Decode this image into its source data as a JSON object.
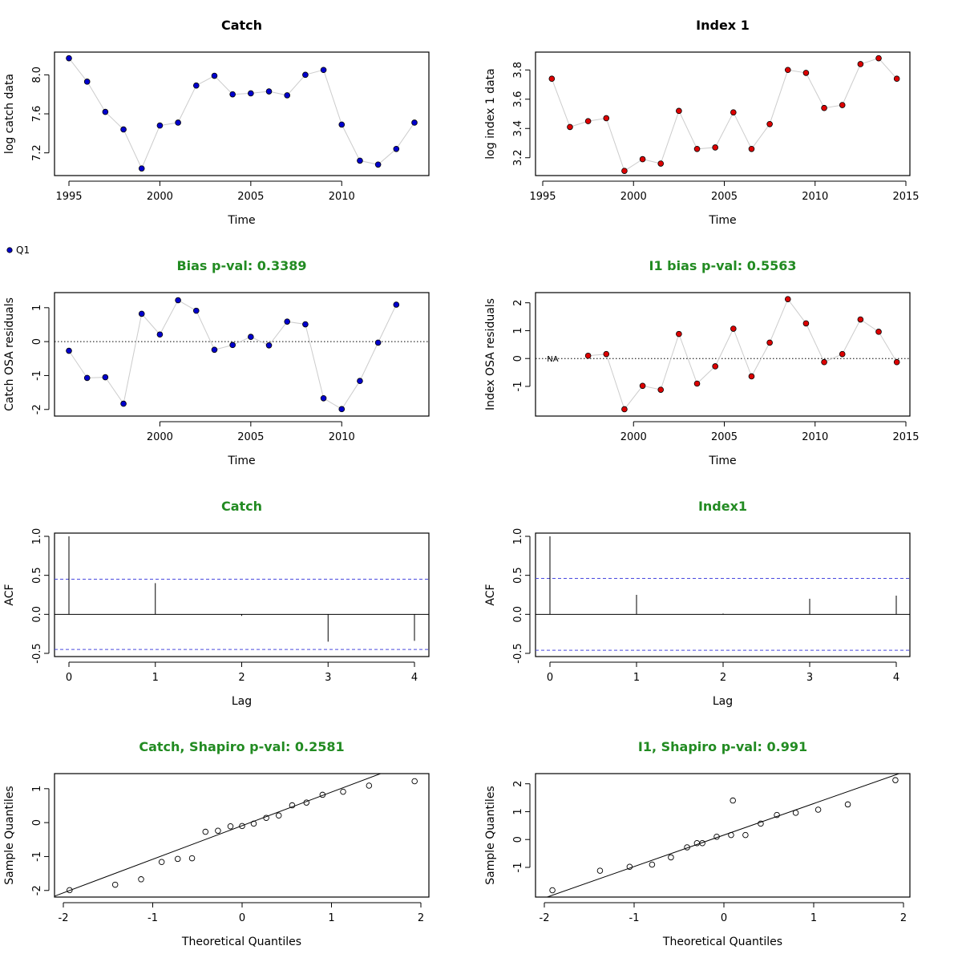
{
  "colors": {
    "catch_points": "#0000cd",
    "index_points": "#dd0000",
    "green_titles": "#228b22",
    "black_titles": "#000000",
    "ci_line": "#4a4adf",
    "connector": "#cccccc"
  },
  "chart_data": [
    {
      "type": "scatter",
      "title": "Catch",
      "title_color": "#000000",
      "xlabel": "Time",
      "ylabel": "log catch data",
      "xlim": [
        1995,
        2014
      ],
      "ylim": [
        7.0,
        8.2
      ],
      "xticks": [
        1995,
        2000,
        2005,
        2010
      ],
      "yticks": [
        7.2,
        7.6,
        8.0
      ],
      "point_color": "#0000cd",
      "legend": "Q1",
      "x": [
        1995,
        1996,
        1997,
        1998,
        1999,
        2000,
        2001,
        2002,
        2003,
        2004,
        2005,
        2006,
        2007,
        2008,
        2009,
        2010,
        2011,
        2012,
        2013,
        2014
      ],
      "y": [
        8.17,
        7.93,
        7.62,
        7.44,
        7.04,
        7.48,
        7.51,
        7.89,
        7.99,
        7.8,
        7.81,
        7.83,
        7.79,
        8.0,
        8.05,
        7.49,
        7.12,
        7.08,
        7.24,
        7.51
      ]
    },
    {
      "type": "scatter",
      "title": "Index 1",
      "title_color": "#000000",
      "xlabel": "Time",
      "ylabel": "log index 1 data",
      "xlim": [
        1995,
        2015
      ],
      "ylim": [
        3.1,
        3.9
      ],
      "xticks": [
        1995,
        2000,
        2005,
        2010,
        2015
      ],
      "yticks": [
        3.2,
        3.4,
        3.6,
        3.8
      ],
      "point_color": "#dd0000",
      "x": [
        1995.5,
        1996.5,
        1997.5,
        1998.5,
        1999.5,
        2000.5,
        2001.5,
        2002.5,
        2003.5,
        2004.5,
        2005.5,
        2006.5,
        2007.5,
        2008.5,
        2009.5,
        2010.5,
        2011.5,
        2012.5,
        2013.5,
        2014.5
      ],
      "y": [
        3.74,
        3.41,
        3.45,
        3.47,
        3.11,
        3.19,
        3.16,
        3.52,
        3.26,
        3.27,
        3.51,
        3.26,
        3.43,
        3.8,
        3.78,
        3.54,
        3.56,
        3.84,
        3.88,
        3.74
      ]
    },
    {
      "type": "scatter",
      "title": "Bias p-val: 0.3389",
      "title_color": "#228b22",
      "xlabel": "Time",
      "ylabel": "Catch OSA residuals",
      "xlim": [
        1995,
        2014
      ],
      "ylim": [
        -2.1,
        1.35
      ],
      "xticks": [
        2000,
        2005,
        2010
      ],
      "yticks": [
        -2.0,
        -1.0,
        0.0,
        1.0
      ],
      "hline": 0,
      "point_color": "#0000cd",
      "x": [
        1995,
        1996,
        1997,
        1998,
        1999,
        2000,
        2001,
        2002,
        2003,
        2004,
        2005,
        2006,
        2007,
        2008,
        2009,
        2010,
        2011,
        2012,
        2013,
        2014
      ],
      "y": [
        -0.27,
        -1.07,
        -1.05,
        -1.83,
        0.82,
        0.21,
        1.22,
        0.91,
        -0.24,
        -0.1,
        0.14,
        -0.11,
        0.59,
        0.51,
        -1.67,
        -1.99,
        -1.16,
        -0.03,
        1.09,
        null
      ]
    },
    {
      "type": "scatter",
      "title": "I1 bias p-val: 0.5563",
      "title_color": "#228b22",
      "xlabel": "Time",
      "ylabel": "Index OSA residuals",
      "xlim": [
        1995,
        2015
      ],
      "ylim": [
        -1.95,
        2.25
      ],
      "xticks": [
        2000,
        2005,
        2010,
        2015
      ],
      "yticks": [
        -1,
        0,
        1,
        2
      ],
      "hline": 0,
      "na_label": "NA",
      "point_color": "#dd0000",
      "x": [
        1997.5,
        1998.5,
        1999.5,
        2000.5,
        2001.5,
        2002.5,
        2003.5,
        2004.5,
        2005.5,
        2006.5,
        2007.5,
        2008.5,
        2009.5,
        2010.5,
        2011.5,
        2012.5,
        2013.5,
        2014.5
      ],
      "y": [
        0.1,
        0.16,
        -1.82,
        -0.98,
        -1.12,
        0.88,
        -0.9,
        -0.28,
        1.07,
        -0.64,
        0.57,
        2.13,
        1.26,
        -0.13,
        0.16,
        1.4,
        0.96,
        -0.13
      ]
    },
    {
      "type": "bar",
      "title": "Catch",
      "title_color": "#228b22",
      "xlabel": "Lag",
      "ylabel": "ACF",
      "xlim": [
        0,
        4
      ],
      "ylim": [
        -0.5,
        1.0
      ],
      "xticks": [
        0,
        1,
        2,
        3,
        4
      ],
      "yticks": [
        -0.5,
        0.0,
        0.5,
        1.0
      ],
      "ci": 0.45,
      "lags": [
        0,
        1,
        2,
        3,
        4
      ],
      "acf": [
        1.0,
        0.4,
        -0.02,
        -0.35,
        -0.34
      ]
    },
    {
      "type": "bar",
      "title": "Index1",
      "title_color": "#228b22",
      "xlabel": "Lag",
      "ylabel": "ACF",
      "xlim": [
        0,
        4
      ],
      "ylim": [
        -0.5,
        1.0
      ],
      "xticks": [
        0,
        1,
        2,
        3,
        4
      ],
      "yticks": [
        -0.5,
        0.0,
        0.5,
        1.0
      ],
      "ci": 0.46,
      "lags": [
        0,
        1,
        2,
        3,
        4
      ],
      "acf": [
        1.0,
        0.25,
        0.01,
        0.2,
        0.24
      ]
    },
    {
      "type": "scatter",
      "title": "Catch, Shapiro p-val: 0.2581",
      "title_color": "#228b22",
      "xlabel": "Theoretical Quantiles",
      "ylabel": "Sample Quantiles",
      "xlim": [
        -2.0,
        2.0
      ],
      "ylim": [
        -2.1,
        1.35
      ],
      "xticks": [
        -2,
        -1,
        0,
        1,
        2
      ],
      "yticks": [
        -2.0,
        -1.0,
        0.0,
        1.0
      ],
      "qqline": {
        "slope": 0.99,
        "intercept": -0.09
      },
      "x": [
        -1.93,
        -1.42,
        -1.13,
        -0.9,
        -0.72,
        -0.56,
        -0.41,
        -0.27,
        -0.13,
        0.0,
        0.13,
        0.27,
        0.41,
        0.56,
        0.72,
        0.9,
        1.13,
        1.42,
        1.93
      ],
      "y": [
        -1.99,
        -1.83,
        -1.67,
        -1.16,
        -1.07,
        -1.05,
        -0.27,
        -0.24,
        -0.11,
        -0.1,
        -0.03,
        0.14,
        0.21,
        0.51,
        0.59,
        0.82,
        0.91,
        1.09,
        1.22
      ]
    },
    {
      "type": "scatter",
      "title": "I1, Shapiro p-val: 0.991",
      "title_color": "#228b22",
      "xlabel": "Theoretical Quantiles",
      "ylabel": "Sample Quantiles",
      "xlim": [
        -2.0,
        2.0
      ],
      "ylim": [
        -1.95,
        2.25
      ],
      "xticks": [
        -2,
        -1,
        0,
        1,
        2
      ],
      "yticks": [
        -1,
        0,
        1,
        2
      ],
      "qqline": {
        "slope": 1.13,
        "intercept": 0.16
      },
      "x": [
        -1.91,
        -1.38,
        -1.05,
        -0.8,
        -0.59,
        -0.41,
        -0.24,
        -0.08,
        0.08,
        0.24,
        0.41,
        0.59,
        0.8,
        1.05,
        1.38,
        1.91,
        -0.3,
        0.1
      ],
      "y": [
        -1.82,
        -1.12,
        -0.98,
        -0.9,
        -0.64,
        -0.28,
        -0.13,
        0.1,
        0.16,
        0.16,
        0.57,
        0.88,
        0.96,
        1.07,
        1.26,
        2.13,
        -0.13,
        1.4
      ]
    }
  ]
}
